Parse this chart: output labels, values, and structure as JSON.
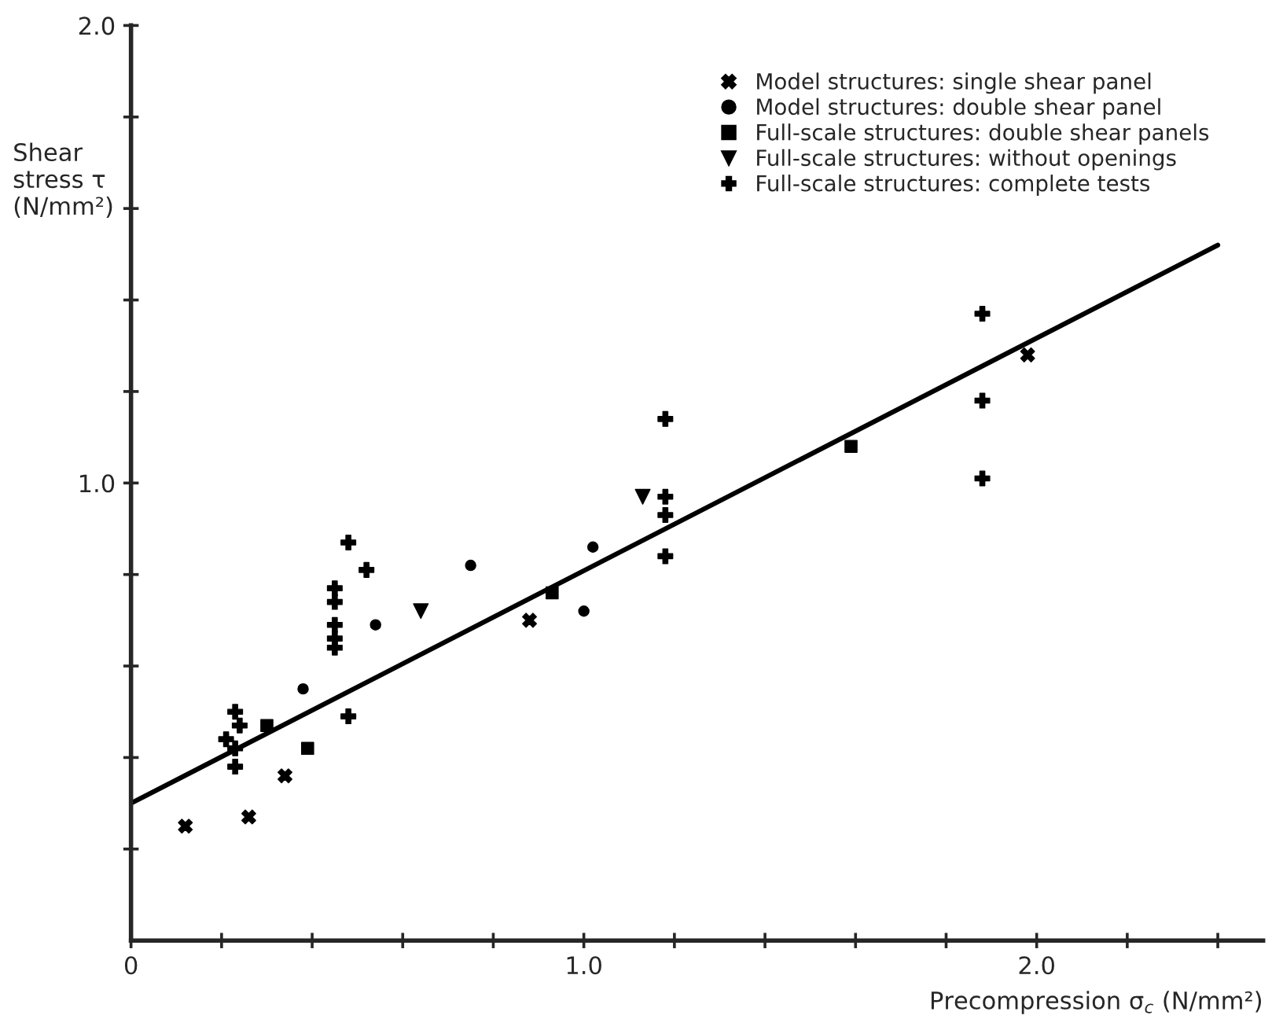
{
  "chart_data": {
    "type": "scatter",
    "xlabel": "Precompression σ$_{c}$ (N/mm²)",
    "ylabel": "Shear\nstress τ\n(N/mm²)",
    "xlim": [
      0,
      2.5
    ],
    "ylim": [
      0,
      2.0
    ],
    "xticks": [
      {
        "value": 0,
        "label": "0"
      },
      {
        "value": 0.2,
        "label": null
      },
      {
        "value": 0.4,
        "label": null
      },
      {
        "value": 0.6,
        "label": null
      },
      {
        "value": 0.8,
        "label": null
      },
      {
        "value": 1.0,
        "label": "1.0"
      },
      {
        "value": 1.2,
        "label": null
      },
      {
        "value": 1.4,
        "label": null
      },
      {
        "value": 1.6,
        "label": null
      },
      {
        "value": 1.8,
        "label": null
      },
      {
        "value": 2.0,
        "label": "2.0"
      },
      {
        "value": 2.2,
        "label": null
      },
      {
        "value": 2.4,
        "label": null
      }
    ],
    "yticks": [
      {
        "value": 0.2,
        "label": null
      },
      {
        "value": 0.4,
        "label": null
      },
      {
        "value": 0.6,
        "label": null
      },
      {
        "value": 0.8,
        "label": null
      },
      {
        "value": 1.0,
        "label": "1.0"
      },
      {
        "value": 1.2,
        "label": null
      },
      {
        "value": 1.4,
        "label": null
      },
      {
        "value": 1.6,
        "label": null
      },
      {
        "value": 1.8,
        "label": null
      },
      {
        "value": 2.0,
        "label": "2.0"
      }
    ],
    "grid": false,
    "legend": "top right",
    "series": [
      {
        "name": "Model structures: single shear panel",
        "marker": "x",
        "color": "#000000",
        "x": [
          0.12,
          0.26,
          0.34,
          0.88,
          1.98
        ],
        "values": [
          0.25,
          0.27,
          0.36,
          0.7,
          1.28
        ]
      },
      {
        "name": "Model structures: double shear panel",
        "marker": "circle",
        "color": "#000000",
        "x": [
          0.38,
          0.54,
          0.75,
          1.0,
          1.02
        ],
        "values": [
          0.55,
          0.69,
          0.82,
          0.72,
          0.86
        ]
      },
      {
        "name": "Full-scale structures: double shear panels",
        "marker": "square",
        "color": "#000000",
        "x": [
          0.3,
          0.39,
          0.93,
          1.59
        ],
        "values": [
          0.47,
          0.42,
          0.76,
          1.08
        ]
      },
      {
        "name": "Full-scale structures: without openings",
        "marker": "triangle_down",
        "color": "#000000",
        "x": [
          0.64,
          1.13
        ],
        "values": [
          0.72,
          0.97
        ]
      },
      {
        "name": "Full-scale structures: complete tests",
        "marker": "plus",
        "color": "#000000",
        "x": [
          0.48,
          0.52,
          0.45,
          0.45,
          0.45,
          0.45,
          0.45,
          0.48,
          0.23,
          0.24,
          0.21,
          0.23,
          0.23,
          1.18,
          1.18,
          1.18,
          1.18,
          1.88,
          1.88,
          1.88
        ],
        "values": [
          0.87,
          0.81,
          0.77,
          0.74,
          0.69,
          0.66,
          0.64,
          0.49,
          0.5,
          0.47,
          0.44,
          0.42,
          0.38,
          1.14,
          0.97,
          0.93,
          0.84,
          1.37,
          1.18,
          1.01
        ]
      },
      {
        "type": "line",
        "marker": "none",
        "color": "#000000",
        "x": [
          0,
          2.4
        ],
        "values": [
          0.3,
          1.52
        ]
      }
    ]
  }
}
